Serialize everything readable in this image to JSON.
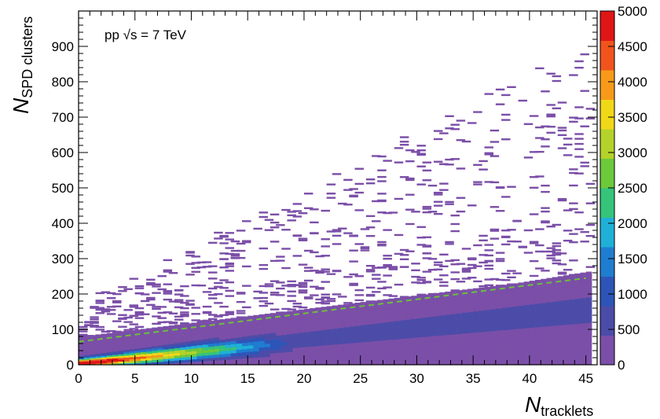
{
  "chart_data": {
    "type": "heatmap",
    "annotation": "pp  √s = 7 TeV",
    "xlabel": {
      "main": "N",
      "sub": "tracklets"
    },
    "ylabel": {
      "main": "N",
      "sub": "SPD clusters"
    },
    "xlim": [
      0,
      46
    ],
    "ylim": [
      0,
      1000
    ],
    "x_ticks": [
      0,
      5,
      10,
      15,
      20,
      25,
      30,
      35,
      40,
      45
    ],
    "y_ticks": [
      0,
      100,
      200,
      300,
      400,
      500,
      600,
      700,
      800,
      900
    ],
    "x_tick_labels": [
      "0",
      "5",
      "10",
      "15",
      "20",
      "25",
      "30",
      "35",
      "40",
      "45"
    ],
    "y_tick_labels": [
      "0",
      "100",
      "200",
      "300",
      "400",
      "500",
      "600",
      "700",
      "800",
      "900"
    ],
    "colorbar": {
      "range": [
        0,
        5000
      ],
      "ticks": [
        0,
        500,
        1000,
        1500,
        2000,
        2500,
        3000,
        3500,
        4000,
        4500,
        5000
      ],
      "tick_labels": [
        "0",
        "500",
        "1000",
        "1500",
        "2000",
        "2500",
        "3000",
        "3500",
        "4000",
        "4500",
        "5000"
      ],
      "colors": [
        "#7b4fa8",
        "#4b4ca8",
        "#2d55b8",
        "#1f7dd0",
        "#1fb0d8",
        "#35c47a",
        "#6cc93a",
        "#b4d22a",
        "#f0d818",
        "#f79a1a",
        "#f0541c",
        "#e01515"
      ]
    },
    "band": {
      "description_points": [
        {
          "x": 0,
          "y": 5
        },
        {
          "x": 5,
          "y": 20
        },
        {
          "x": 10,
          "y": 40
        },
        {
          "x": 15,
          "y": 55
        },
        {
          "x": 20,
          "y": 70
        },
        {
          "x": 25,
          "y": 90
        },
        {
          "x": 30,
          "y": 105
        },
        {
          "x": 35,
          "y": 120
        },
        {
          "x": 40,
          "y": 135
        },
        {
          "x": 45,
          "y": 150
        }
      ],
      "peak_counts_near_origin": 5000
    },
    "cut_line": {
      "style": "dashed",
      "color": "#6cbf3a",
      "points": [
        {
          "x": 0,
          "y": 65
        },
        {
          "x": 45,
          "y": 245
        }
      ]
    }
  }
}
